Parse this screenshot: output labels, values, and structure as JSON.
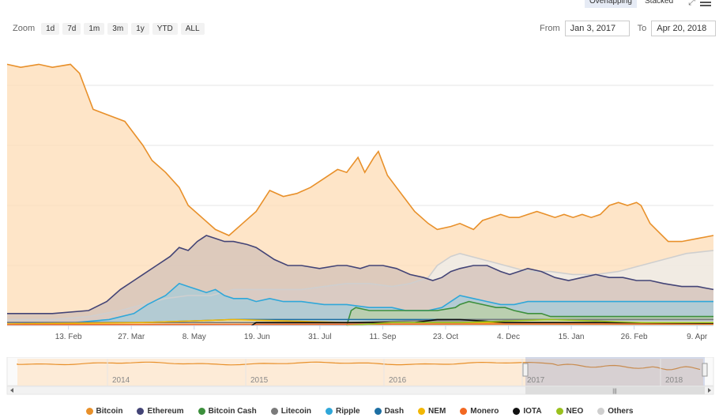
{
  "toolbar": {
    "overlapping_label": "Overlapping",
    "stacked_label": "Stacked",
    "zoom_label": "Zoom",
    "zoom_buttons": [
      "1d",
      "7d",
      "1m",
      "3m",
      "1y",
      "YTD",
      "ALL"
    ],
    "from_label": "From",
    "from_value": "Jan 3, 2017",
    "to_label": "To",
    "to_value": "Apr 20, 2018"
  },
  "chart_data": {
    "type": "area",
    "x_ticks": [
      "13. Feb",
      "27. Mar",
      "8. May",
      "19. Jun",
      "31. Jul",
      "11. Sep",
      "23. Oct",
      "4. Dec",
      "15. Jan",
      "26. Feb",
      "9. Apr"
    ],
    "x_range": [
      "2017-01-03",
      "2018-04-20"
    ],
    "ylim": [
      0,
      90
    ],
    "grid": true,
    "legend_position": "bottom",
    "series": [
      {
        "name": "Bitcoin",
        "color": "#e8902a",
        "fill": "#fddcb5",
        "points": [
          [
            0,
            87
          ],
          [
            6,
            86
          ],
          [
            14,
            87
          ],
          [
            20,
            86
          ],
          [
            28,
            87
          ],
          [
            32,
            84
          ],
          [
            35,
            78
          ],
          [
            38,
            72
          ],
          [
            45,
            70
          ],
          [
            52,
            68
          ],
          [
            55,
            65
          ],
          [
            60,
            60
          ],
          [
            64,
            55
          ],
          [
            70,
            51
          ],
          [
            76,
            46
          ],
          [
            80,
            40
          ],
          [
            86,
            36
          ],
          [
            92,
            32
          ],
          [
            98,
            30
          ],
          [
            104,
            34
          ],
          [
            110,
            38
          ],
          [
            116,
            45
          ],
          [
            122,
            43
          ],
          [
            128,
            44
          ],
          [
            134,
            46
          ],
          [
            140,
            49
          ],
          [
            146,
            52
          ],
          [
            150,
            51
          ],
          [
            155,
            56
          ],
          [
            158,
            51
          ],
          [
            162,
            56
          ],
          [
            164,
            58
          ],
          [
            168,
            50
          ],
          [
            172,
            46
          ],
          [
            176,
            42
          ],
          [
            180,
            38
          ],
          [
            186,
            34
          ],
          [
            190,
            32
          ],
          [
            196,
            33
          ],
          [
            200,
            34
          ],
          [
            206,
            32
          ],
          [
            210,
            35
          ],
          [
            214,
            36
          ],
          [
            218,
            37
          ],
          [
            222,
            36
          ],
          [
            226,
            36
          ],
          [
            230,
            37
          ],
          [
            234,
            38
          ],
          [
            238,
            37
          ],
          [
            242,
            36
          ],
          [
            246,
            37
          ],
          [
            250,
            36
          ],
          [
            254,
            37
          ],
          [
            258,
            36
          ],
          [
            262,
            37
          ],
          [
            266,
            40
          ],
          [
            270,
            41
          ],
          [
            274,
            40
          ],
          [
            278,
            41
          ],
          [
            280,
            40
          ],
          [
            284,
            34
          ],
          [
            288,
            31
          ],
          [
            292,
            28
          ],
          [
            298,
            28
          ],
          [
            305,
            29
          ],
          [
            312,
            30
          ]
        ]
      },
      {
        "name": "Others",
        "color": "#cfcfcf",
        "fill": "#ececec",
        "points": [
          [
            0,
            2
          ],
          [
            20,
            2
          ],
          [
            36,
            3
          ],
          [
            50,
            5
          ],
          [
            60,
            7
          ],
          [
            70,
            9
          ],
          [
            80,
            10
          ],
          [
            90,
            10
          ],
          [
            100,
            12
          ],
          [
            110,
            12
          ],
          [
            120,
            12
          ],
          [
            130,
            12
          ],
          [
            140,
            13
          ],
          [
            150,
            14
          ],
          [
            160,
            14
          ],
          [
            170,
            13
          ],
          [
            178,
            14
          ],
          [
            186,
            16
          ],
          [
            190,
            20
          ],
          [
            196,
            23
          ],
          [
            200,
            24
          ],
          [
            210,
            22
          ],
          [
            220,
            20
          ],
          [
            230,
            18
          ],
          [
            240,
            18
          ],
          [
            250,
            17
          ],
          [
            260,
            17
          ],
          [
            270,
            18
          ],
          [
            280,
            20
          ],
          [
            290,
            22
          ],
          [
            300,
            24
          ],
          [
            312,
            25
          ]
        ]
      },
      {
        "name": "Ethereum",
        "color": "#434476",
        "fill": "#d2c0b8",
        "points": [
          [
            0,
            4
          ],
          [
            20,
            4
          ],
          [
            36,
            5
          ],
          [
            44,
            8
          ],
          [
            50,
            12
          ],
          [
            56,
            15
          ],
          [
            60,
            17
          ],
          [
            66,
            20
          ],
          [
            72,
            23
          ],
          [
            76,
            26
          ],
          [
            80,
            25
          ],
          [
            84,
            28
          ],
          [
            88,
            30
          ],
          [
            92,
            29
          ],
          [
            96,
            28
          ],
          [
            100,
            28
          ],
          [
            106,
            27
          ],
          [
            110,
            26
          ],
          [
            114,
            24
          ],
          [
            118,
            22
          ],
          [
            124,
            20
          ],
          [
            130,
            20
          ],
          [
            138,
            19
          ],
          [
            146,
            20
          ],
          [
            150,
            20
          ],
          [
            156,
            19
          ],
          [
            160,
            20
          ],
          [
            166,
            20
          ],
          [
            172,
            19
          ],
          [
            178,
            17
          ],
          [
            184,
            16
          ],
          [
            188,
            15
          ],
          [
            192,
            16
          ],
          [
            196,
            18
          ],
          [
            200,
            19
          ],
          [
            206,
            20
          ],
          [
            212,
            20
          ],
          [
            218,
            18
          ],
          [
            222,
            17
          ],
          [
            226,
            18
          ],
          [
            230,
            19
          ],
          [
            236,
            18
          ],
          [
            242,
            16
          ],
          [
            248,
            15
          ],
          [
            254,
            16
          ],
          [
            260,
            17
          ],
          [
            266,
            16
          ],
          [
            272,
            16
          ],
          [
            278,
            15
          ],
          [
            284,
            15
          ],
          [
            290,
            14
          ],
          [
            298,
            13
          ],
          [
            305,
            13
          ],
          [
            312,
            12
          ]
        ]
      },
      {
        "name": "Ripple",
        "color": "#2fa7d9",
        "fill": "#a5cbd8",
        "points": [
          [
            0,
            1
          ],
          [
            30,
            1
          ],
          [
            45,
            2
          ],
          [
            56,
            4
          ],
          [
            62,
            7
          ],
          [
            70,
            10
          ],
          [
            76,
            14
          ],
          [
            80,
            13
          ],
          [
            84,
            12
          ],
          [
            88,
            11
          ],
          [
            92,
            12
          ],
          [
            96,
            10
          ],
          [
            100,
            9
          ],
          [
            106,
            9
          ],
          [
            110,
            8
          ],
          [
            116,
            9
          ],
          [
            122,
            8
          ],
          [
            130,
            8
          ],
          [
            140,
            7
          ],
          [
            150,
            7
          ],
          [
            160,
            6
          ],
          [
            170,
            6
          ],
          [
            176,
            5
          ],
          [
            186,
            5
          ],
          [
            192,
            6
          ],
          [
            196,
            8
          ],
          [
            200,
            10
          ],
          [
            206,
            9
          ],
          [
            212,
            8
          ],
          [
            218,
            7
          ],
          [
            224,
            7
          ],
          [
            230,
            8
          ],
          [
            240,
            8
          ],
          [
            250,
            8
          ],
          [
            260,
            8
          ],
          [
            270,
            8
          ],
          [
            280,
            8
          ],
          [
            290,
            8
          ],
          [
            300,
            8
          ],
          [
            312,
            8
          ]
        ]
      },
      {
        "name": "Bitcoin Cash",
        "color": "#3c8f3c",
        "fill": "#bcd0a4",
        "points": [
          [
            150,
            0
          ],
          [
            152,
            5
          ],
          [
            154,
            6
          ],
          [
            160,
            5
          ],
          [
            170,
            5
          ],
          [
            180,
            5
          ],
          [
            190,
            5
          ],
          [
            198,
            6
          ],
          [
            200,
            7
          ],
          [
            204,
            8
          ],
          [
            210,
            7
          ],
          [
            216,
            6
          ],
          [
            220,
            6
          ],
          [
            224,
            5
          ],
          [
            230,
            4
          ],
          [
            236,
            4
          ],
          [
            240,
            3
          ],
          [
            250,
            3
          ],
          [
            260,
            3
          ],
          [
            270,
            3
          ],
          [
            280,
            3
          ],
          [
            290,
            3
          ],
          [
            300,
            3
          ],
          [
            312,
            3
          ]
        ]
      },
      {
        "name": "Dash",
        "color": "#1d6fa3",
        "fill": "#cfe3ee",
        "points": [
          [
            0,
            1
          ],
          [
            60,
            1
          ],
          [
            100,
            2
          ],
          [
            150,
            2
          ],
          [
            200,
            2
          ],
          [
            240,
            2
          ],
          [
            280,
            2
          ],
          [
            312,
            2
          ]
        ]
      },
      {
        "name": "Litecoin",
        "color": "#7a7a7a",
        "fill": "#d9d9d9",
        "points": [
          [
            0,
            1
          ],
          [
            60,
            1
          ],
          [
            100,
            1
          ],
          [
            150,
            1
          ],
          [
            200,
            2
          ],
          [
            240,
            2
          ],
          [
            280,
            2
          ],
          [
            312,
            2
          ]
        ]
      },
      {
        "name": "NEM",
        "color": "#f2b705",
        "fill": "#f8e1a0",
        "points": [
          [
            0,
            0.5
          ],
          [
            60,
            1
          ],
          [
            100,
            2
          ],
          [
            150,
            1
          ],
          [
            200,
            1
          ],
          [
            240,
            1
          ],
          [
            280,
            1
          ],
          [
            312,
            0.5
          ]
        ]
      },
      {
        "name": "Monero",
        "color": "#f26822",
        "fill": "#f6c2a4",
        "points": [
          [
            0,
            0.3
          ],
          [
            100,
            0.4
          ],
          [
            200,
            0.5
          ],
          [
            312,
            0.5
          ]
        ]
      },
      {
        "name": "IOTA",
        "color": "#111111",
        "fill": "#888888",
        "points": [
          [
            108,
            0
          ],
          [
            110,
            1
          ],
          [
            150,
            1
          ],
          [
            180,
            1
          ],
          [
            190,
            2
          ],
          [
            200,
            2
          ],
          [
            220,
            1
          ],
          [
            260,
            1
          ],
          [
            312,
            0.8
          ]
        ]
      },
      {
        "name": "NEO",
        "color": "#9ac11e",
        "fill": "#d8e8a5",
        "points": [
          [
            150,
            0
          ],
          [
            170,
            1
          ],
          [
            200,
            1
          ],
          [
            240,
            2
          ],
          [
            280,
            1
          ],
          [
            312,
            1
          ]
        ]
      }
    ]
  },
  "navigator": {
    "year_labels": [
      "2014",
      "2015",
      "2016",
      "2017",
      "2018"
    ],
    "handle_glyph": "|||"
  }
}
